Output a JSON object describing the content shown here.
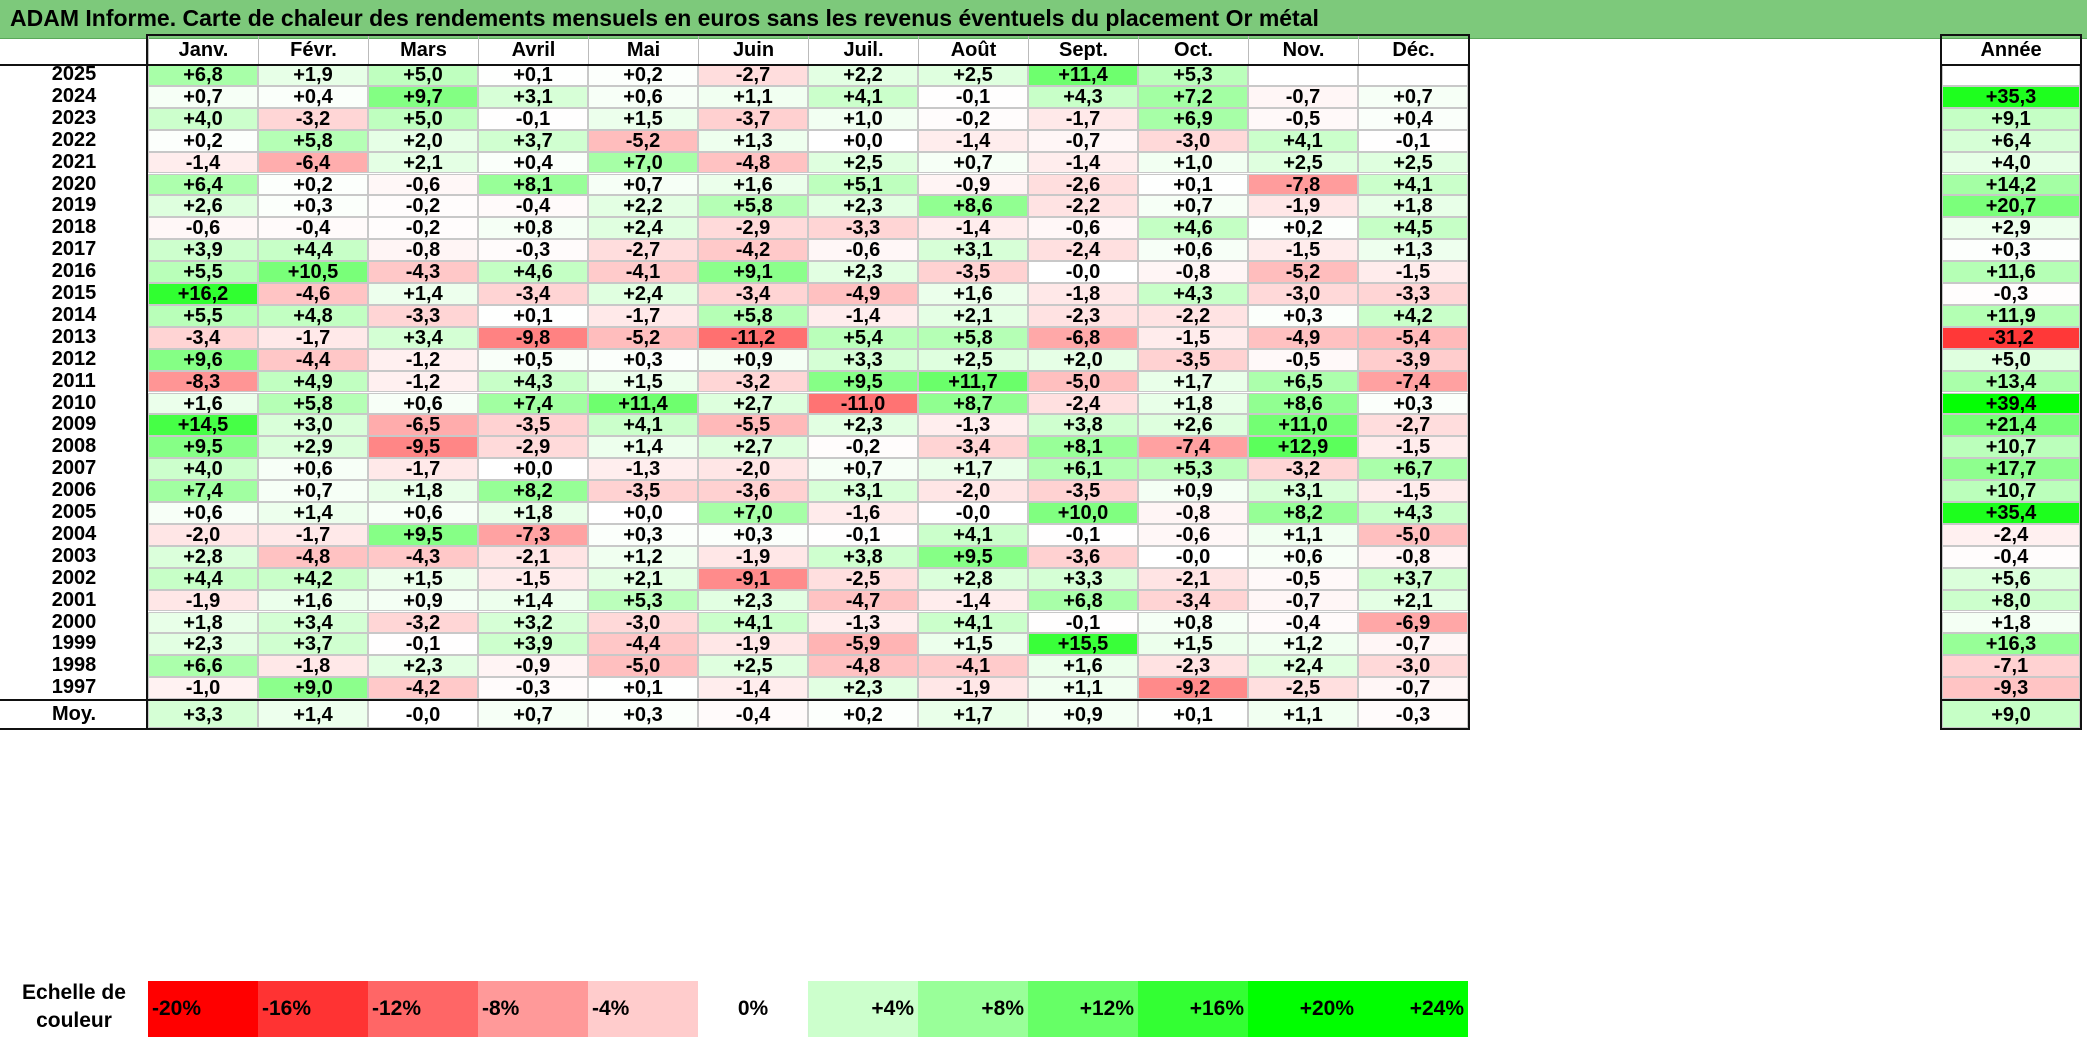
{
  "title": "ADAM Informe. Carte de chaleur des rendements mensuels en euros sans les revenus éventuels du placement Or métal",
  "chart_data": {
    "type": "heatmap",
    "title": "ADAM Informe. Carte de chaleur des rendements mensuels en euros sans les revenus éventuels du placement Or métal",
    "columns": [
      "Janv.",
      "Févr.",
      "Mars",
      "Avril",
      "Mai",
      "Juin",
      "Juil.",
      "Août",
      "Sept.",
      "Oct.",
      "Nov.",
      "Déc."
    ],
    "year_column_label": "Année",
    "rows": [
      {
        "year": "2025",
        "values": [
          "+6,8",
          "+1,9",
          "+5,0",
          "+0,1",
          "+0,2",
          "-2,7",
          "+2,2",
          "+2,5",
          "+11,4",
          "+5,3",
          "",
          ""
        ],
        "annual": ""
      },
      {
        "year": "2024",
        "values": [
          "+0,7",
          "+0,4",
          "+9,7",
          "+3,1",
          "+0,6",
          "+1,1",
          "+4,1",
          "-0,1",
          "+4,3",
          "+7,2",
          "-0,7",
          "+0,7"
        ],
        "annual": "+35,3"
      },
      {
        "year": "2023",
        "values": [
          "+4,0",
          "-3,2",
          "+5,0",
          "-0,1",
          "+1,5",
          "-3,7",
          "+1,0",
          "-0,2",
          "-1,7",
          "+6,9",
          "-0,5",
          "+0,4"
        ],
        "annual": "+9,1"
      },
      {
        "year": "2022",
        "values": [
          "+0,2",
          "+5,8",
          "+2,0",
          "+3,7",
          "-5,2",
          "+1,3",
          "+0,0",
          "-1,4",
          "-0,7",
          "-3,0",
          "+4,1",
          "-0,1"
        ],
        "annual": "+6,4"
      },
      {
        "year": "2021",
        "values": [
          "-1,4",
          "-6,4",
          "+2,1",
          "+0,4",
          "+7,0",
          "-4,8",
          "+2,5",
          "+0,7",
          "-1,4",
          "+1,0",
          "+2,5",
          "+2,5"
        ],
        "annual": "+4,0"
      },
      {
        "year": "2020",
        "values": [
          "+6,4",
          "+0,2",
          "-0,6",
          "+8,1",
          "+0,7",
          "+1,6",
          "+5,1",
          "-0,9",
          "-2,6",
          "+0,1",
          "-7,8",
          "+4,1"
        ],
        "annual": "+14,2"
      },
      {
        "year": "2019",
        "values": [
          "+2,6",
          "+0,3",
          "-0,2",
          "-0,4",
          "+2,2",
          "+5,8",
          "+2,3",
          "+8,6",
          "-2,2",
          "+0,7",
          "-1,9",
          "+1,8"
        ],
        "annual": "+20,7"
      },
      {
        "year": "2018",
        "values": [
          "-0,6",
          "-0,4",
          "-0,2",
          "+0,8",
          "+2,4",
          "-2,9",
          "-3,3",
          "-1,4",
          "-0,6",
          "+4,6",
          "+0,2",
          "+4,5"
        ],
        "annual": "+2,9"
      },
      {
        "year": "2017",
        "values": [
          "+3,9",
          "+4,4",
          "-0,8",
          "-0,3",
          "-2,7",
          "-4,2",
          "-0,6",
          "+3,1",
          "-2,4",
          "+0,6",
          "-1,5",
          "+1,3"
        ],
        "annual": "+0,3"
      },
      {
        "year": "2016",
        "values": [
          "+5,5",
          "+10,5",
          "-4,3",
          "+4,6",
          "-4,1",
          "+9,1",
          "+2,3",
          "-3,5",
          "-0,0",
          "-0,8",
          "-5,2",
          "-1,5"
        ],
        "annual": "+11,6"
      },
      {
        "year": "2015",
        "values": [
          "+16,2",
          "-4,6",
          "+1,4",
          "-3,4",
          "+2,4",
          "-3,4",
          "-4,9",
          "+1,6",
          "-1,8",
          "+4,3",
          "-3,0",
          "-3,3"
        ],
        "annual": "-0,3"
      },
      {
        "year": "2014",
        "values": [
          "+5,5",
          "+4,8",
          "-3,3",
          "+0,1",
          "-1,7",
          "+5,8",
          "-1,4",
          "+2,1",
          "-2,3",
          "-2,2",
          "+0,3",
          "+4,2"
        ],
        "annual": "+11,9"
      },
      {
        "year": "2013",
        "values": [
          "-3,4",
          "-1,7",
          "+3,4",
          "-9,8",
          "-5,2",
          "-11,2",
          "+5,4",
          "+5,8",
          "-6,8",
          "-1,5",
          "-4,9",
          "-5,4"
        ],
        "annual": "-31,2"
      },
      {
        "year": "2012",
        "values": [
          "+9,6",
          "-4,4",
          "-1,2",
          "+0,5",
          "+0,3",
          "+0,9",
          "+3,3",
          "+2,5",
          "+2,0",
          "-3,5",
          "-0,5",
          "-3,9"
        ],
        "annual": "+5,0"
      },
      {
        "year": "2011",
        "values": [
          "-8,3",
          "+4,9",
          "-1,2",
          "+4,3",
          "+1,5",
          "-3,2",
          "+9,5",
          "+11,7",
          "-5,0",
          "+1,7",
          "+6,5",
          "-7,4"
        ],
        "annual": "+13,4"
      },
      {
        "year": "2010",
        "values": [
          "+1,6",
          "+5,8",
          "+0,6",
          "+7,4",
          "+11,4",
          "+2,7",
          "-11,0",
          "+8,7",
          "-2,4",
          "+1,8",
          "+8,6",
          "+0,3"
        ],
        "annual": "+39,4"
      },
      {
        "year": "2009",
        "values": [
          "+14,5",
          "+3,0",
          "-6,5",
          "-3,5",
          "+4,1",
          "-5,5",
          "+2,3",
          "-1,3",
          "+3,8",
          "+2,6",
          "+11,0",
          "-2,7"
        ],
        "annual": "+21,4"
      },
      {
        "year": "2008",
        "values": [
          "+9,5",
          "+2,9",
          "-9,5",
          "-2,9",
          "+1,4",
          "+2,7",
          "-0,2",
          "-3,4",
          "+8,1",
          "-7,4",
          "+12,9",
          "-1,5"
        ],
        "annual": "+10,7"
      },
      {
        "year": "2007",
        "values": [
          "+4,0",
          "+0,6",
          "-1,7",
          "+0,0",
          "-1,3",
          "-2,0",
          "+0,7",
          "+1,7",
          "+6,1",
          "+5,3",
          "-3,2",
          "+6,7"
        ],
        "annual": "+17,7"
      },
      {
        "year": "2006",
        "values": [
          "+7,4",
          "+0,7",
          "+1,8",
          "+8,2",
          "-3,5",
          "-3,6",
          "+3,1",
          "-2,0",
          "-3,5",
          "+0,9",
          "+3,1",
          "-1,5"
        ],
        "annual": "+10,7"
      },
      {
        "year": "2005",
        "values": [
          "+0,6",
          "+1,4",
          "+0,6",
          "+1,8",
          "+0,0",
          "+7,0",
          "-1,6",
          "-0,0",
          "+10,0",
          "-0,8",
          "+8,2",
          "+4,3"
        ],
        "annual": "+35,4"
      },
      {
        "year": "2004",
        "values": [
          "-2,0",
          "-1,7",
          "+9,5",
          "-7,3",
          "+0,3",
          "+0,3",
          "-0,1",
          "+4,1",
          "-0,1",
          "-0,6",
          "+1,1",
          "-5,0"
        ],
        "annual": "-2,4"
      },
      {
        "year": "2003",
        "values": [
          "+2,8",
          "-4,8",
          "-4,3",
          "-2,1",
          "+1,2",
          "-1,9",
          "+3,8",
          "+9,5",
          "-3,6",
          "-0,0",
          "+0,6",
          "-0,8"
        ],
        "annual": "-0,4"
      },
      {
        "year": "2002",
        "values": [
          "+4,4",
          "+4,2",
          "+1,5",
          "-1,5",
          "+2,1",
          "-9,1",
          "-2,5",
          "+2,8",
          "+3,3",
          "-2,1",
          "-0,5",
          "+3,7"
        ],
        "annual": "+5,6"
      },
      {
        "year": "2001",
        "values": [
          "-1,9",
          "+1,6",
          "+0,9",
          "+1,4",
          "+5,3",
          "+2,3",
          "-4,7",
          "-1,4",
          "+6,8",
          "-3,4",
          "-0,7",
          "+2,1"
        ],
        "annual": "+8,0"
      },
      {
        "year": "2000",
        "values": [
          "+1,8",
          "+3,4",
          "-3,2",
          "+3,2",
          "-3,0",
          "+4,1",
          "-1,3",
          "+4,1",
          "-0,1",
          "+0,8",
          "-0,4",
          "-6,9"
        ],
        "annual": "+1,8"
      },
      {
        "year": "1999",
        "values": [
          "+2,3",
          "+3,7",
          "-0,1",
          "+3,9",
          "-4,4",
          "-1,9",
          "-5,9",
          "+1,5",
          "+15,5",
          "+1,5",
          "+1,2",
          "-0,7"
        ],
        "annual": "+16,3"
      },
      {
        "year": "1998",
        "values": [
          "+6,6",
          "-1,8",
          "+2,3",
          "-0,9",
          "-5,0",
          "+2,5",
          "-4,8",
          "-4,1",
          "+1,6",
          "-2,3",
          "+2,4",
          "-3,0"
        ],
        "annual": "-7,1"
      },
      {
        "year": "1997",
        "values": [
          "-1,0",
          "+9,0",
          "-4,2",
          "-0,3",
          "+0,1",
          "-1,4",
          "+2,3",
          "-1,9",
          "+1,1",
          "-9,2",
          "-2,5",
          "-0,7"
        ],
        "annual": "-9,3"
      }
    ],
    "average_row": {
      "label": "Moy.",
      "values": [
        "+3,3",
        "+1,4",
        "-0,0",
        "+0,7",
        "+0,3",
        "-0,4",
        "+0,2",
        "+1,7",
        "+0,9",
        "+0,1",
        "+1,1",
        "-0,3"
      ],
      "annual": "+9,0"
    },
    "color_scale": {
      "label": "Echelle de couleur",
      "stops": [
        "-20%",
        "-16%",
        "-12%",
        "-8%",
        "-4%",
        "0%",
        "+4%",
        "+8%",
        "+12%",
        "+16%",
        "+20%",
        "+24%"
      ]
    }
  },
  "colors": {
    "negative": "#ff0000",
    "positive": "#00ff00",
    "neutral": "#ffffff",
    "title_bar": "#7dc97b"
  }
}
